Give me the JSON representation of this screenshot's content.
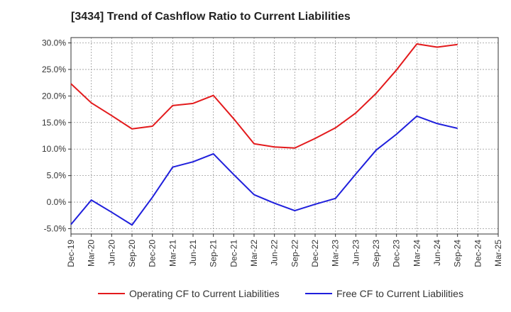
{
  "chart_data": {
    "type": "line",
    "title": "[3434]  Trend of Cashflow Ratio to Current Liabilities",
    "xlabel": "",
    "ylabel": "",
    "categories": [
      "Dec-19",
      "Mar-20",
      "Jun-20",
      "Sep-20",
      "Dec-20",
      "Mar-21",
      "Jun-21",
      "Sep-21",
      "Dec-21",
      "Mar-22",
      "Jun-22",
      "Sep-22",
      "Dec-22",
      "Mar-23",
      "Jun-23",
      "Sep-23",
      "Dec-23",
      "Mar-24",
      "Jun-24",
      "Sep-24",
      "Dec-24",
      "Mar-25"
    ],
    "y_ticks": [
      "-5.0%",
      "0.0%",
      "5.0%",
      "10.0%",
      "15.0%",
      "20.0%",
      "25.0%",
      "30.0%"
    ],
    "ylim": [
      -6,
      31
    ],
    "grid": true,
    "legend_position": "bottom",
    "series": [
      {
        "name": "Operating CF to Current Liabilities",
        "color": "#e31a1c",
        "values": [
          22.3,
          18.7,
          16.3,
          13.8,
          14.3,
          18.2,
          18.6,
          20.1,
          15.7,
          11.0,
          10.4,
          10.2,
          12.0,
          14.0,
          16.8,
          20.5,
          24.9,
          29.8,
          29.2,
          29.7,
          null,
          null
        ]
      },
      {
        "name": "Free CF to Current Liabilities",
        "color": "#1f1fdc",
        "values": [
          -4.2,
          0.4,
          -1.9,
          -4.3,
          0.9,
          6.6,
          7.6,
          9.1,
          5.2,
          1.4,
          -0.2,
          -1.6,
          -0.4,
          0.7,
          5.3,
          9.8,
          12.8,
          16.2,
          14.8,
          13.9,
          null,
          null
        ]
      }
    ]
  }
}
